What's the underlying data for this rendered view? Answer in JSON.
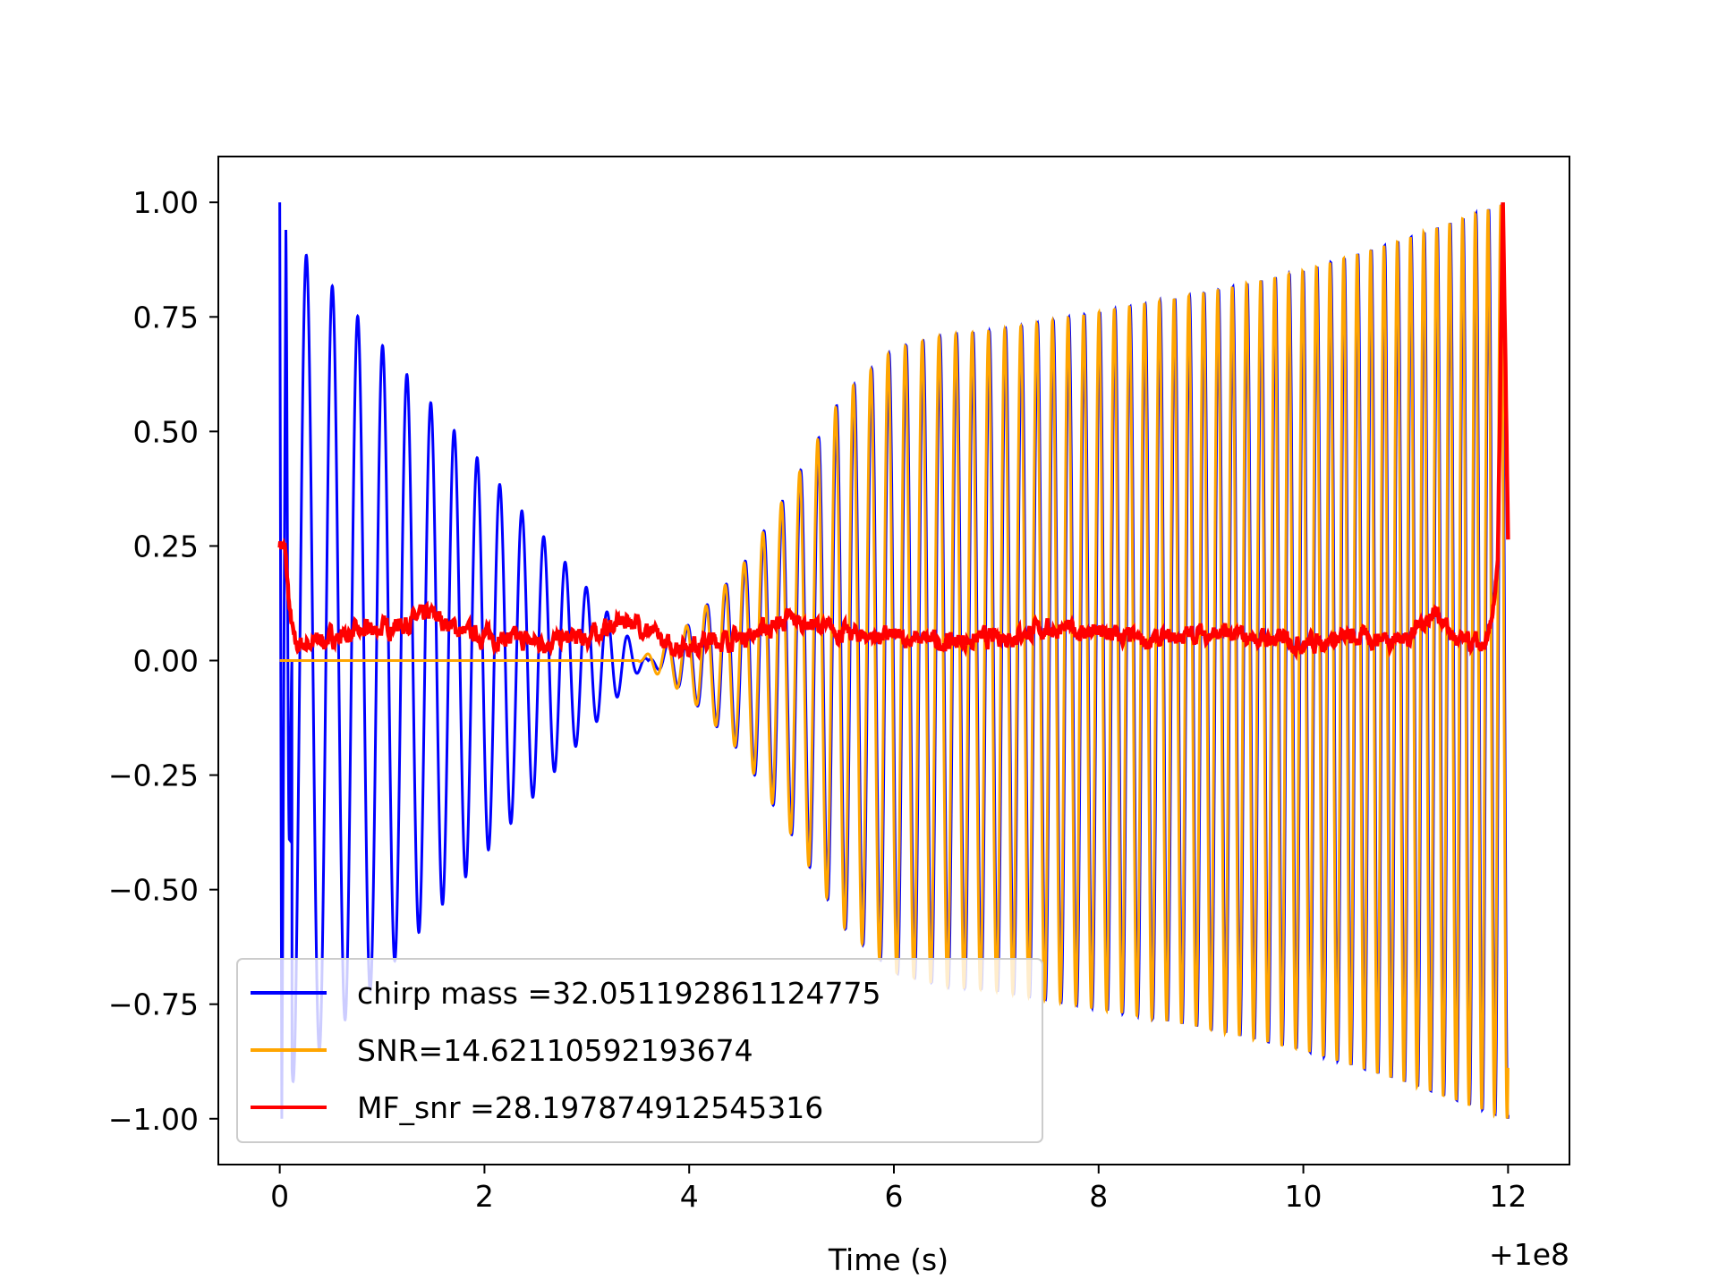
{
  "chart_data": {
    "type": "line",
    "title": "",
    "xlabel": "Time (s)",
    "ylabel": "",
    "x_offset_label": "+1e8",
    "xlim": [
      -0.6,
      12.6
    ],
    "ylim": [
      -1.1,
      1.1
    ],
    "xticks": [
      0,
      2,
      4,
      6,
      8,
      10,
      12
    ],
    "xtick_labels": [
      "0",
      "2",
      "4",
      "6",
      "8",
      "10",
      "12"
    ],
    "yticks": [
      1.0,
      0.75,
      0.5,
      0.25,
      0.0,
      -0.25,
      -0.5,
      -0.75,
      -1.0
    ],
    "ytick_labels": [
      "1.00",
      "0.75",
      "0.50",
      "0.25",
      "0.00",
      "−0.25",
      "−0.50",
      "−0.75",
      "−1.00"
    ],
    "grid": false,
    "legend_position": "lower-left",
    "series": [
      {
        "name": "chirp mass =32.051192861124775",
        "color": "#0000ff",
        "envelope_keypoints": {
          "t": [
            0.0,
            0.05,
            3.6,
            4.0,
            4.5,
            5.0,
            5.5,
            6.0,
            6.5,
            7.0,
            8.0,
            9.0,
            10.0,
            11.0,
            12.0
          ],
          "amplitude": [
            1.0,
            0.94,
            0.0,
            0.08,
            0.2,
            0.38,
            0.58,
            0.68,
            0.71,
            0.72,
            0.76,
            0.8,
            0.85,
            0.92,
            1.0
          ]
        }
      },
      {
        "name": "SNR=14.62110592193674",
        "color": "#ffa500",
        "envelope_keypoints": {
          "t": [
            0.0,
            3.5,
            4.0,
            4.5,
            5.0,
            5.5,
            6.0,
            6.5,
            7.0,
            8.0,
            9.0,
            10.0,
            11.0,
            12.0
          ],
          "amplitude": [
            0.0,
            0.0,
            0.08,
            0.2,
            0.38,
            0.58,
            0.68,
            0.71,
            0.72,
            0.76,
            0.8,
            0.85,
            0.92,
            1.0
          ]
        }
      },
      {
        "name": "MF_snr =28.197874912545316",
        "color": "#ff0000",
        "keypoints": {
          "t": [
            0.0,
            0.05,
            0.1,
            0.15,
            0.5,
            1.0,
            1.5,
            1.8,
            2.5,
            3.0,
            3.4,
            3.5,
            3.8,
            4.5,
            5.0,
            5.5,
            6.0,
            6.5,
            7.0,
            7.5,
            8.0,
            8.5,
            9.0,
            9.5,
            10.0,
            10.5,
            11.0,
            11.3,
            11.5,
            11.8,
            11.9,
            11.95,
            12.0
          ],
          "values": [
            0.26,
            0.24,
            0.1,
            0.03,
            0.05,
            0.07,
            0.1,
            0.06,
            0.04,
            0.05,
            0.09,
            0.08,
            0.03,
            0.05,
            0.09,
            0.06,
            0.05,
            0.04,
            0.05,
            0.07,
            0.06,
            0.04,
            0.06,
            0.05,
            0.04,
            0.05,
            0.05,
            0.11,
            0.04,
            0.03,
            0.2,
            1.0,
            0.26
          ]
        }
      }
    ]
  }
}
